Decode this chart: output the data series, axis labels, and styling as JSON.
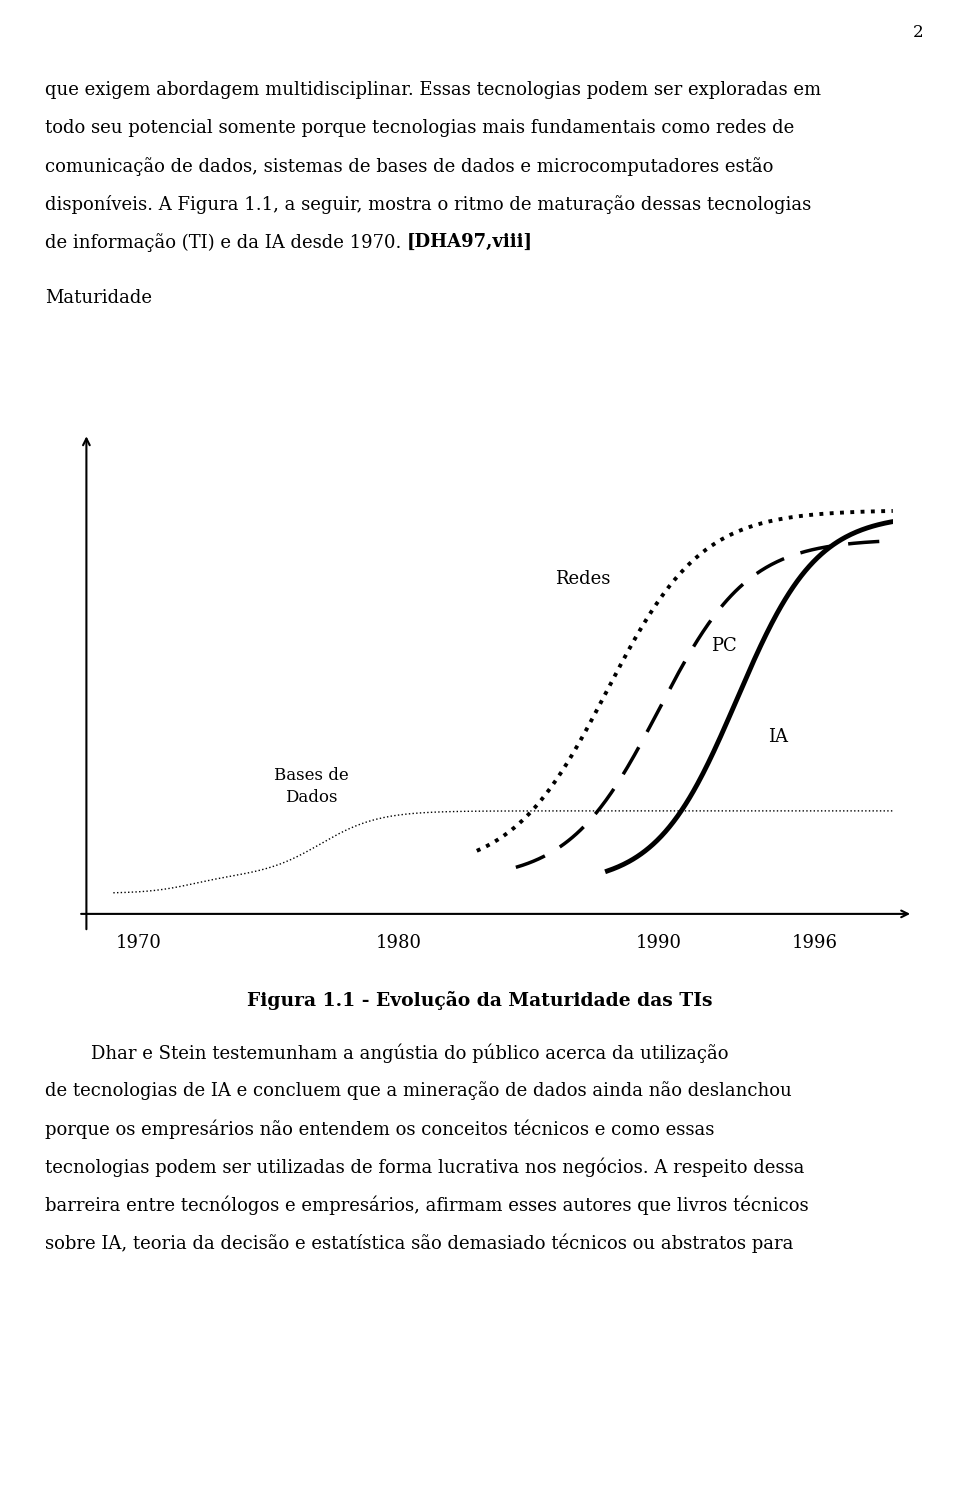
{
  "page_number": "2",
  "text_top": [
    "que exigem abordagem multidisciplinar. Essas tecnologias podem ser exploradas em",
    "todo seu potencial somente porque tecnologias mais fundamentais como redes de",
    "comunicação de dados, sistemas de bases de dados e microcomputadores estão",
    "disponíveis. A Figura 1.1, a seguir, mostra o ritmo de maturação dessas tecnologias",
    "de informação (TI) e da IA desde 1970. [DHA97,viii]"
  ],
  "bold_part": "[DHA97,viii]",
  "ylabel": "Maturidade",
  "xlabel_ticks": [
    "1970",
    "1980",
    "1990",
    "1996"
  ],
  "curve_labels": {
    "redes": "Redes",
    "pc": "PC",
    "bases": "Bases de\nDados",
    "ia": "IA"
  },
  "fig_caption": "Figura 1.1 - Evolução da Maturidade das TIs",
  "text_bottom": [
    "        Dhar e Stein testemunham a angústia do público acerca da utilização",
    "de tecnologias de IA e concluem que a mineração de dados ainda não deslanchou",
    "porque os empresários não entendem os conceitos técnicos e como essas",
    "tecnologias podem ser utilizadas de forma lucrativa nos negócios. A respeito dessa",
    "barreira entre tecnólogos e empresários, afirmam esses autores que livros técnicos",
    "sobre IA, teoria da decisão e estatística são demasiado técnicos ou abstratos para"
  ],
  "background_color": "#ffffff",
  "text_color": "#000000",
  "font_size_body": 13,
  "font_size_caption": 13
}
